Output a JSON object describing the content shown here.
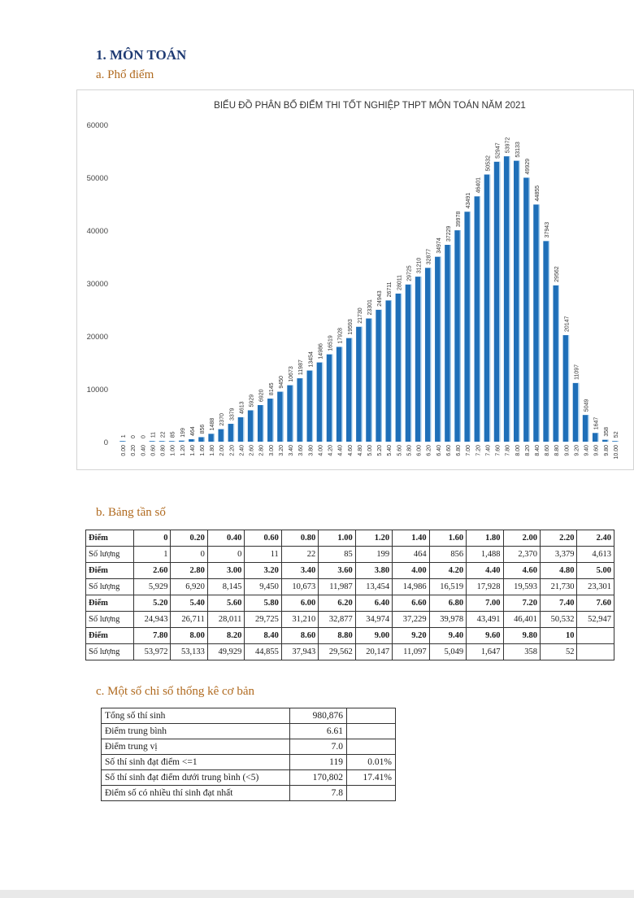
{
  "heading": "1. MÔN TOÁN",
  "section_a": "a. Phổ điểm",
  "section_b": "b. Bảng tần số",
  "section_c": "c. Một số chỉ số thống kê cơ bản",
  "chart_data": {
    "type": "bar",
    "title": "BIỂU ĐỒ PHÂN BỐ ĐIỂM THI TỐT NGHIỆP THPT MÔN TOÁN NĂM 2021",
    "categories": [
      "0.00",
      "0.20",
      "0.40",
      "0.60",
      "0.80",
      "1.00",
      "1.20",
      "1.40",
      "1.60",
      "1.80",
      "2.00",
      "2.20",
      "2.40",
      "2.60",
      "2.80",
      "3.00",
      "3.20",
      "3.40",
      "3.60",
      "3.80",
      "4.00",
      "4.20",
      "4.40",
      "4.60",
      "4.80",
      "5.00",
      "5.20",
      "5.40",
      "5.60",
      "5.80",
      "6.00",
      "6.20",
      "6.40",
      "6.60",
      "6.80",
      "7.00",
      "7.20",
      "7.40",
      "7.60",
      "7.80",
      "8.00",
      "8.20",
      "8.40",
      "8.60",
      "8.80",
      "9.00",
      "9.20",
      "9.40",
      "9.60",
      "9.80",
      "10.00"
    ],
    "values": [
      1,
      0,
      0,
      11,
      22,
      85,
      199,
      464,
      856,
      1488,
      2370,
      3379,
      4613,
      5929,
      6920,
      8145,
      9450,
      10673,
      11987,
      13454,
      14986,
      16519,
      17928,
      19593,
      21730,
      23301,
      24943,
      26711,
      28011,
      29725,
      31210,
      32877,
      34974,
      37229,
      39978,
      43491,
      46401,
      50532,
      52947,
      53972,
      53133,
      49929,
      44855,
      37943,
      29562,
      20147,
      11097,
      5049,
      1647,
      358,
      52
    ],
    "ylim": [
      0,
      60000
    ],
    "yticks": [
      "0",
      "10000",
      "20000",
      "30000",
      "40000",
      "50000",
      "60000"
    ],
    "xlabel": "",
    "ylabel": "",
    "grid": false,
    "legend": "none",
    "bar_color": "#1f6fb8"
  },
  "freq_table": {
    "header_label": "Điểm",
    "count_label": "Số lượng",
    "groups": [
      {
        "points": [
          "0",
          "0.20",
          "0.40",
          "0.60",
          "0.80",
          "1.00",
          "1.20",
          "1.40",
          "1.60",
          "1.80",
          "2.00",
          "2.20",
          "2.40"
        ],
        "counts": [
          "1",
          "0",
          "0",
          "11",
          "22",
          "85",
          "199",
          "464",
          "856",
          "1,488",
          "2,370",
          "3,379",
          "4,613"
        ]
      },
      {
        "points": [
          "2.60",
          "2.80",
          "3.00",
          "3.20",
          "3.40",
          "3.60",
          "3.80",
          "4.00",
          "4.20",
          "4.40",
          "4.60",
          "4.80",
          "5.00"
        ],
        "counts": [
          "5,929",
          "6,920",
          "8,145",
          "9,450",
          "10,673",
          "11,987",
          "13,454",
          "14,986",
          "16,519",
          "17,928",
          "19,593",
          "21,730",
          "23,301"
        ]
      },
      {
        "points": [
          "5.20",
          "5.40",
          "5.60",
          "5.80",
          "6.00",
          "6.20",
          "6.40",
          "6.60",
          "6.80",
          "7.00",
          "7.20",
          "7.40",
          "7.60"
        ],
        "counts": [
          "24,943",
          "26,711",
          "28,011",
          "29,725",
          "31,210",
          "32,877",
          "34,974",
          "37,229",
          "39,978",
          "43,491",
          "46,401",
          "50,532",
          "52,947"
        ]
      },
      {
        "points": [
          "7.80",
          "8.00",
          "8.20",
          "8.40",
          "8.60",
          "8.80",
          "9.00",
          "9.20",
          "9.40",
          "9.60",
          "9.80",
          "10",
          ""
        ],
        "counts": [
          "53,972",
          "53,133",
          "49,929",
          "44,855",
          "37,943",
          "29,562",
          "20,147",
          "11,097",
          "5,049",
          "1,647",
          "358",
          "52",
          ""
        ]
      }
    ]
  },
  "stats_table": [
    {
      "label": "Tổng số thí sinh",
      "value": "980,876",
      "pct": ""
    },
    {
      "label": "Điểm trung bình",
      "value": "6.61",
      "pct": ""
    },
    {
      "label": "Điểm trung vị",
      "value": "7.0",
      "pct": ""
    },
    {
      "label": "Số thí sinh đạt điểm <=1",
      "value": "119",
      "pct": "0.01%"
    },
    {
      "label": "Số thí sinh đạt điểm dưới trung bình (<5)",
      "value": "170,802",
      "pct": "17.41%"
    },
    {
      "label": "Điểm số có nhiều thí sinh đạt nhất",
      "value": "7.8",
      "pct": ""
    }
  ]
}
